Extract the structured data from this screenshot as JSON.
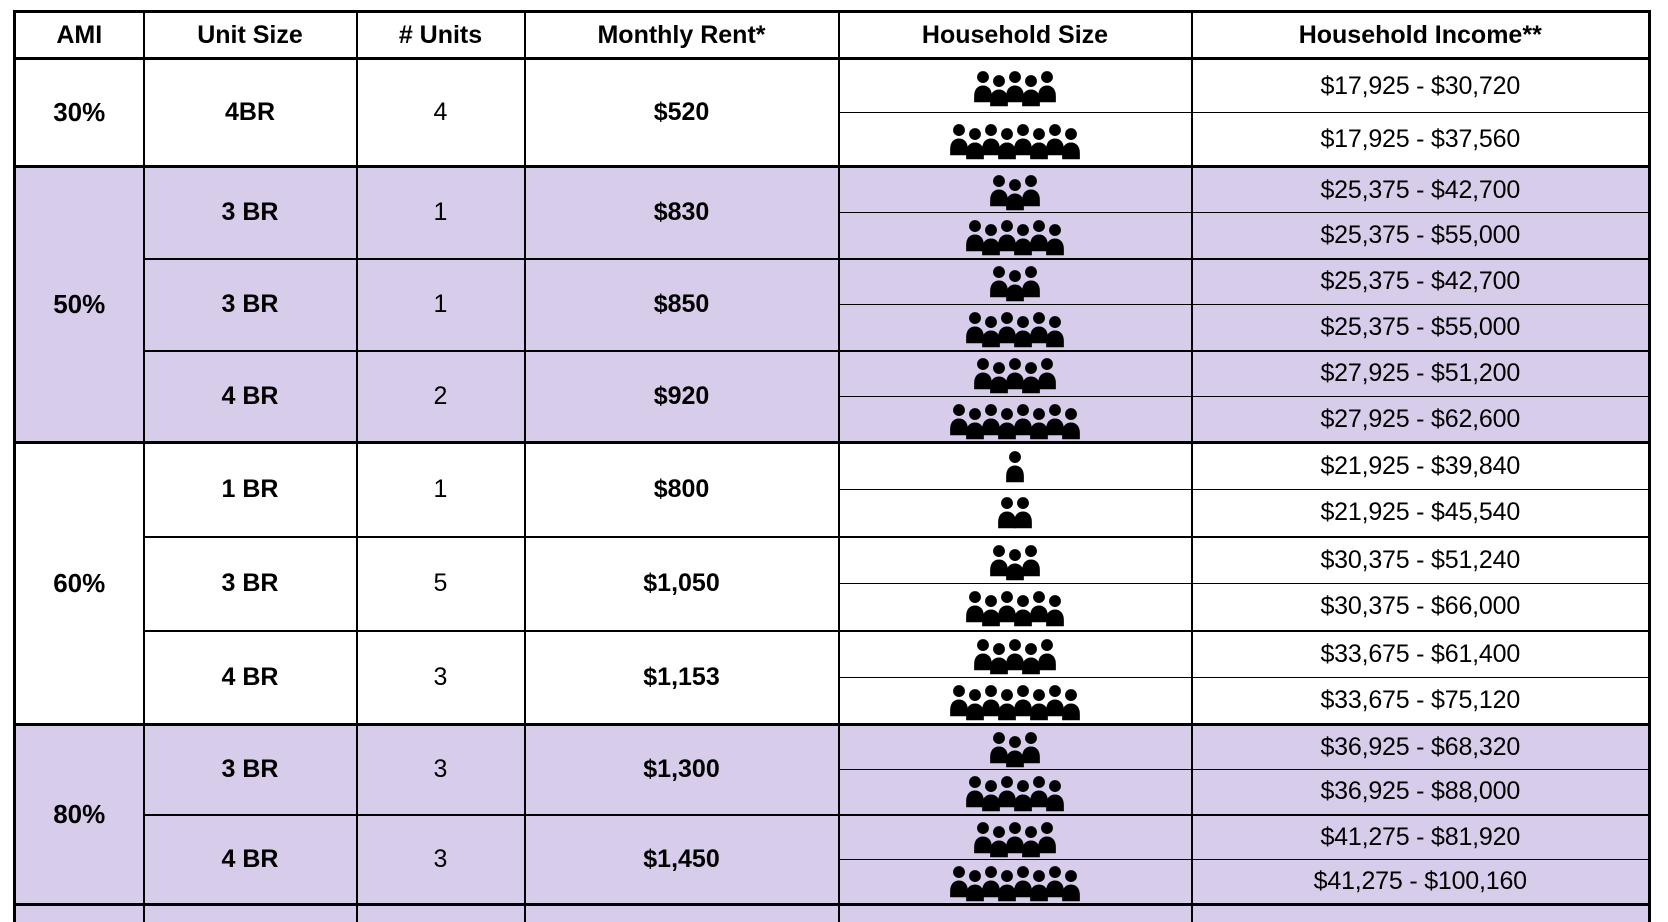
{
  "table": {
    "headers": [
      "AMI",
      "Unit Size",
      "# Units",
      "Monthly Rent*",
      "Household Size",
      "Household Income**"
    ],
    "colors": {
      "shaded_row_bg": "#d7cce9",
      "border": "#000000",
      "text": "#000000",
      "background": "#ffffff"
    },
    "groups": [
      {
        "ami": "30%",
        "shaded": false,
        "units": [
          {
            "unit_size": "4BR",
            "num_units": "4",
            "rent": "$520",
            "rows": [
              {
                "household_size": 5,
                "income": "$17,925 - $30,720"
              },
              {
                "household_size": 8,
                "income": "$17,925 - $37,560"
              }
            ]
          }
        ]
      },
      {
        "ami": "50%",
        "shaded": true,
        "units": [
          {
            "unit_size": "3 BR",
            "num_units": "1",
            "rent": "$830",
            "rows": [
              {
                "household_size": 3,
                "income": "$25,375 - $42,700"
              },
              {
                "household_size": 6,
                "income": "$25,375 - $55,000"
              }
            ]
          },
          {
            "unit_size": "3 BR",
            "num_units": "1",
            "rent": "$850",
            "rows": [
              {
                "household_size": 3,
                "income": "$25,375 - $42,700"
              },
              {
                "household_size": 6,
                "income": "$25,375 - $55,000"
              }
            ]
          },
          {
            "unit_size": "4 BR",
            "num_units": "2",
            "rent": "$920",
            "rows": [
              {
                "household_size": 5,
                "income": "$27,925 - $51,200"
              },
              {
                "household_size": 8,
                "income": "$27,925 - $62,600"
              }
            ]
          }
        ]
      },
      {
        "ami": "60%",
        "shaded": false,
        "units": [
          {
            "unit_size": "1 BR",
            "num_units": "1",
            "rent": "$800",
            "rows": [
              {
                "household_size": 1,
                "income": "$21,925 - $39,840"
              },
              {
                "household_size": 2,
                "income": "$21,925 - $45,540"
              }
            ]
          },
          {
            "unit_size": "3 BR",
            "num_units": "5",
            "rent": "$1,050",
            "rows": [
              {
                "household_size": 3,
                "income": "$30,375 - $51,240"
              },
              {
                "household_size": 6,
                "income": "$30,375 - $66,000"
              }
            ]
          },
          {
            "unit_size": "4 BR",
            "num_units": "3",
            "rent": "$1,153",
            "rows": [
              {
                "household_size": 5,
                "income": "$33,675 - $61,400"
              },
              {
                "household_size": 8,
                "income": "$33,675 - $75,120"
              }
            ]
          }
        ]
      },
      {
        "ami": "80%",
        "shaded": true,
        "units": [
          {
            "unit_size": "3 BR",
            "num_units": "3",
            "rent": "$1,300",
            "rows": [
              {
                "household_size": 3,
                "income": "$36,925 - $68,320"
              },
              {
                "household_size": 6,
                "income": "$36,925 - $88,000"
              }
            ]
          },
          {
            "unit_size": "4 BR",
            "num_units": "3",
            "rent": "$1,450",
            "rows": [
              {
                "household_size": 5,
                "income": "$41,275 - $81,920"
              },
              {
                "household_size": 8,
                "income": "$41,275 - $100,160"
              }
            ]
          }
        ]
      }
    ],
    "icons": {
      "household_member": "person-icon"
    },
    "clipped_bottom_strip": {
      "shaded": true
    }
  }
}
